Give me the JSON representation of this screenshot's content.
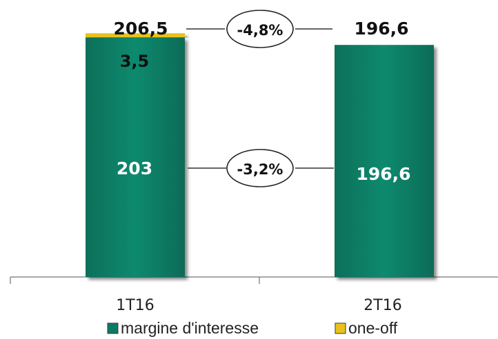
{
  "chart_data": {
    "type": "bar",
    "stacked": true,
    "categories": [
      "1T16",
      "2T16"
    ],
    "series": [
      {
        "name": "margine d'interesse",
        "values": [
          203,
          196.6
        ],
        "value_labels": [
          "203",
          "196,6"
        ],
        "color": "#0b7a63"
      },
      {
        "name": "one-off",
        "values": [
          3.5,
          0
        ],
        "value_labels": [
          "3,5",
          ""
        ],
        "color": "#e8c21a"
      }
    ],
    "totals": [
      206.5,
      196.6
    ],
    "total_labels": [
      "206,5",
      "196,6"
    ],
    "comparisons": [
      {
        "label": "-4,8%",
        "level": "total"
      },
      {
        "label": "-3,2%",
        "level": "margin"
      }
    ],
    "ylim": [
      0,
      230
    ],
    "legend_position": "bottom",
    "grid": false
  }
}
